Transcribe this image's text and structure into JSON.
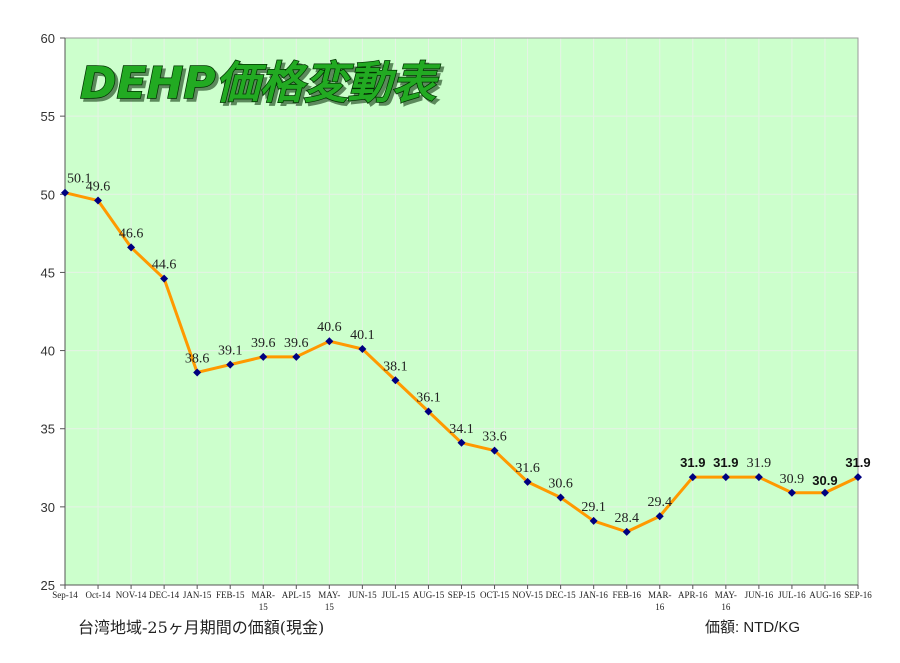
{
  "footer": {
    "left": "台湾地域-25ヶ月期間の価額(現金)",
    "right": "価額: NTD/KG"
  },
  "colors": {
    "plot_bg": "#ccffcc",
    "line": "#ff9900",
    "marker": "#000080",
    "title_fill": "#22aa22",
    "title_stroke": "#003300",
    "grid": "#e6f2e6"
  },
  "chart_data": {
    "type": "line",
    "title": "DEHP価格変動表",
    "xlabel": "",
    "ylabel": "",
    "ylim": [
      25,
      60
    ],
    "yticks": [
      25,
      30,
      35,
      40,
      45,
      50,
      55,
      60
    ],
    "grid": true,
    "categories": [
      "Sep-14",
      "Oct-14",
      "NOV-14",
      "DEC-14",
      "JAN-15",
      "FEB-15",
      "MAR-15",
      "APL-15",
      "MAY-15",
      "JUN-15",
      "JUL-15",
      "AUG-15",
      "SEP-15",
      "OCT-15",
      "NOV-15",
      "DEC-15",
      "JAN-16",
      "FEB-16",
      "MAR-16",
      "APR-16",
      "MAY-16",
      "JUN-16",
      "JUL-16",
      "AUG-16",
      "SEP-16"
    ],
    "series": [
      {
        "values": [
          50.1,
          49.6,
          46.6,
          44.6,
          38.6,
          39.1,
          39.6,
          39.6,
          40.6,
          40.1,
          38.1,
          36.1,
          34.1,
          33.6,
          31.6,
          30.6,
          29.1,
          28.4,
          29.4,
          31.9,
          31.9,
          31.9,
          30.9,
          30.9,
          31.9
        ]
      }
    ]
  }
}
